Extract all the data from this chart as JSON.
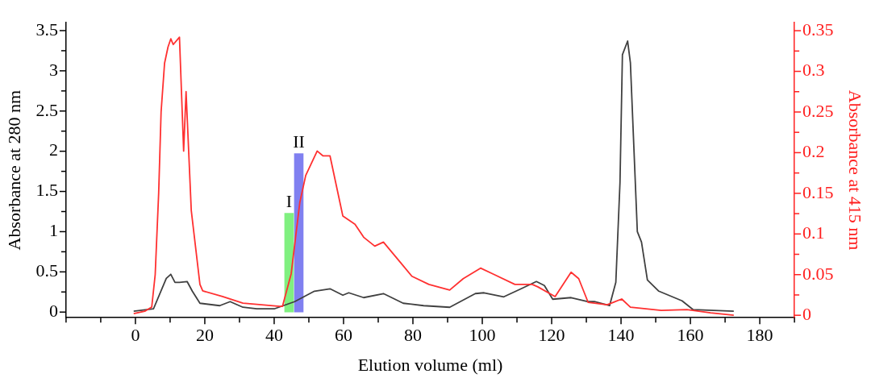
{
  "chart_data": {
    "type": "line",
    "xlabel": "Elution volume (ml)",
    "ylabel": "Absorbance at 280 nm",
    "y2label": "Absorbance at 415 nm",
    "xlim": [
      -20,
      190
    ],
    "xticks": [
      {
        "value": -20,
        "label": null
      },
      {
        "value": -10,
        "label": null
      },
      0,
      {
        "value": 10,
        "label": null
      },
      20,
      {
        "value": 30,
        "label": null
      },
      40,
      {
        "value": 50,
        "label": null
      },
      60,
      {
        "value": 70,
        "label": null
      },
      80,
      {
        "value": 90,
        "label": null
      },
      100,
      {
        "value": 110,
        "label": null
      },
      120,
      {
        "value": 130,
        "label": null
      },
      140,
      {
        "value": 150,
        "label": null
      },
      160,
      {
        "value": 170,
        "label": null
      },
      180,
      {
        "value": 190,
        "label": null
      }
    ],
    "ylim": [
      -0.07,
      3.6
    ],
    "yticks": [
      0,
      {
        "value": 0.25,
        "label": null
      },
      0.5,
      {
        "value": 0.75,
        "label": null
      },
      1,
      {
        "value": 1.25,
        "label": null
      },
      1.5,
      {
        "value": 1.75,
        "label": null
      },
      2,
      {
        "value": 2.25,
        "label": null
      },
      2.5,
      {
        "value": 2.75,
        "label": null
      },
      3,
      {
        "value": 3.25,
        "label": null
      },
      3.5
    ],
    "y2lim": [
      -0.003,
      0.36
    ],
    "y2ticks": [
      0,
      {
        "value": 0.025,
        "label": null
      },
      0.05,
      {
        "value": 0.075,
        "label": null
      },
      0.1,
      {
        "value": 0.125,
        "label": null
      },
      0.15,
      {
        "value": 0.175,
        "label": null
      },
      0.2,
      {
        "value": 0.225,
        "label": null
      },
      0.25,
      {
        "value": 0.275,
        "label": null
      },
      0.3,
      {
        "value": 0.325,
        "label": null
      },
      0.35
    ],
    "grid": false,
    "legend": false,
    "marker": "none",
    "line_style": "solid",
    "series": [
      {
        "name": "I",
        "type": "bar",
        "color": "#80f080",
        "x": [
          44.3
        ],
        "values": [
          1.23
        ]
      },
      {
        "name": "II",
        "type": "bar",
        "color": "#8080f0",
        "x": [
          47.1
        ],
        "values": [
          1.97
        ]
      },
      {
        "color": "#ff3030",
        "axis": "y2",
        "x": [
          -0.5,
          2.7,
          4.7,
          5.7,
          6.7,
          7.4,
          8.4,
          9.4,
          10.2,
          10.9,
          12.7,
          13.9,
          14.6,
          16.1,
          18.6,
          19.4,
          25.1,
          31,
          41.7,
          42.4,
          44.9,
          47.4,
          49.1,
          52.4,
          54.1,
          56.1,
          59.8,
          63.3,
          65.8,
          69,
          71.5,
          76.4,
          79.7,
          84.6,
          90.6,
          94.5,
          99.5,
          103,
          109.4,
          114.4,
          116,
          121,
          125.6,
          127.8,
          130.5,
          136,
          140.2,
          142.7,
          151.6,
          159,
          165.8,
          172.5
        ],
        "values": [
          0.002,
          0.005,
          0.01,
          0.05,
          0.15,
          0.25,
          0.31,
          0.33,
          0.34,
          0.333,
          0.342,
          0.202,
          0.275,
          0.129,
          0.038,
          0.03,
          0.023,
          0.015,
          0.011,
          0.011,
          0.051,
          0.139,
          0.172,
          0.202,
          0.196,
          0.196,
          0.122,
          0.112,
          0.096,
          0.085,
          0.09,
          0.065,
          0.048,
          0.038,
          0.031,
          0.045,
          0.058,
          0.051,
          0.038,
          0.038,
          0.035,
          0.023,
          0.053,
          0.045,
          0.016,
          0.013,
          0.02,
          0.01,
          0.006,
          0.007,
          0.003,
          0
        ]
      },
      {
        "color": "#404040",
        "x": [
          -0.5,
          5.2,
          8.9,
          10.2,
          11.4,
          12.7,
          14.9,
          16.4,
          18.6,
          24.3,
          27.3,
          31,
          35,
          40,
          45.9,
          51.6,
          56.1,
          59.8,
          61.5,
          65.8,
          71.5,
          77.2,
          83.1,
          90.6,
          98,
          100.5,
          106.2,
          111.2,
          115.6,
          117.9,
          120.3,
          125.6,
          130.3,
          132.3,
          136.7,
          138.5,
          139.7,
          140.4,
          141.9,
          142.7,
          144.7,
          145.9,
          147.6,
          150.9,
          157.6,
          160.8,
          172.5
        ],
        "values": [
          0.01,
          0.04,
          0.42,
          0.47,
          0.37,
          0.37,
          0.38,
          0.26,
          0.11,
          0.08,
          0.13,
          0.06,
          0.04,
          0.04,
          0.13,
          0.26,
          0.29,
          0.21,
          0.24,
          0.18,
          0.23,
          0.11,
          0.08,
          0.06,
          0.23,
          0.24,
          0.19,
          0.29,
          0.38,
          0.33,
          0.16,
          0.18,
          0.13,
          0.13,
          0.08,
          0.37,
          1.61,
          3.2,
          3.37,
          3.1,
          1.0,
          0.87,
          0.4,
          0.26,
          0.14,
          0.03,
          0.01
        ]
      }
    ]
  }
}
